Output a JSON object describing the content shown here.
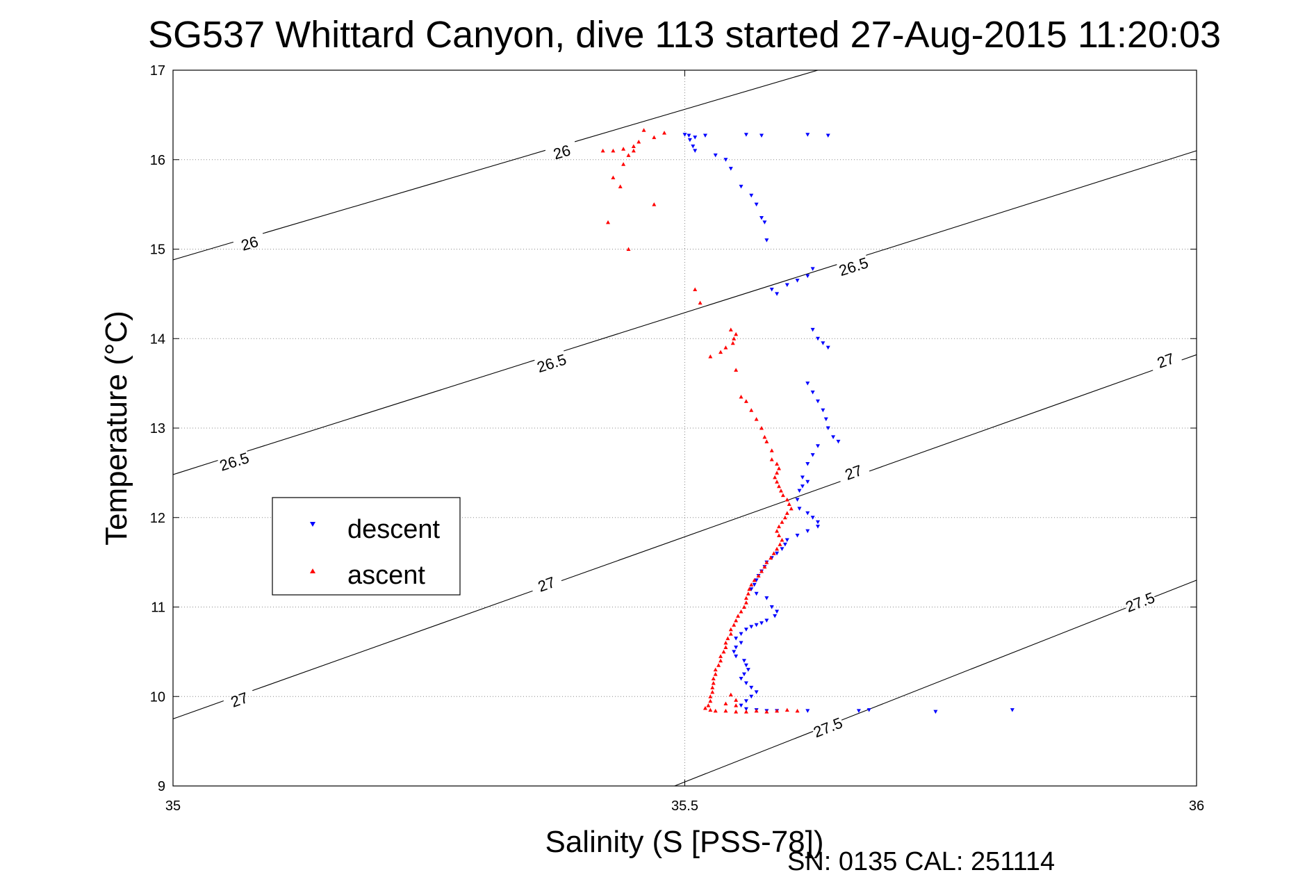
{
  "chart_data": {
    "type": "scatter",
    "title": "SG537 Whittard Canyon, dive 113 started 27-Aug-2015 11:20:03",
    "xlabel": "Salinity (S [PSS-78])",
    "ylabel": "Temperature (°C)",
    "xlim": [
      35,
      36
    ],
    "ylim": [
      9,
      17
    ],
    "xticks": [
      "35",
      "35.5",
      "36"
    ],
    "yticks": [
      "9",
      "10",
      "11",
      "12",
      "13",
      "14",
      "15",
      "16",
      "17"
    ],
    "grid": true,
    "legend_position": "middle-left",
    "isopycnals": [
      {
        "label": "26",
        "line": [
          [
            35.0,
            14.88
          ],
          [
            35.63,
            17.0
          ]
        ],
        "label_points": [
          [
            35.075,
            15.06
          ],
          [
            35.38,
            16.08
          ]
        ]
      },
      {
        "label": "26.5",
        "line": [
          [
            35.0,
            12.48
          ],
          [
            36.0,
            16.1
          ]
        ],
        "label_points": [
          [
            35.06,
            12.62
          ],
          [
            35.37,
            13.72
          ],
          [
            35.665,
            14.8
          ]
        ]
      },
      {
        "label": "27",
        "line": [
          [
            35.0,
            9.75
          ],
          [
            36.0,
            13.82
          ]
        ],
        "label_points": [
          [
            35.065,
            9.96
          ],
          [
            35.365,
            11.25
          ],
          [
            35.665,
            12.5
          ],
          [
            35.97,
            13.75
          ]
        ]
      },
      {
        "label": "27.5",
        "line": [
          [
            35.49,
            9.0
          ],
          [
            36.0,
            11.3
          ]
        ],
        "label_points": [
          [
            35.64,
            9.65
          ],
          [
            35.945,
            11.05
          ]
        ]
      }
    ],
    "series": [
      {
        "name": "descent",
        "color": "#0000ff",
        "marker": "triangle-down",
        "points": [
          [
            35.5,
            16.28
          ],
          [
            35.504,
            16.27
          ],
          [
            35.51,
            16.25
          ],
          [
            35.52,
            16.27
          ],
          [
            35.56,
            16.28
          ],
          [
            35.575,
            16.27
          ],
          [
            35.62,
            16.28
          ],
          [
            35.64,
            16.27
          ],
          [
            35.505,
            16.22
          ],
          [
            35.508,
            16.15
          ],
          [
            35.51,
            16.1
          ],
          [
            35.53,
            16.05
          ],
          [
            35.54,
            16.0
          ],
          [
            35.545,
            15.9
          ],
          [
            35.555,
            15.7
          ],
          [
            35.565,
            15.6
          ],
          [
            35.57,
            15.5
          ],
          [
            35.575,
            15.35
          ],
          [
            35.578,
            15.3
          ],
          [
            35.58,
            15.1
          ],
          [
            35.585,
            14.55
          ],
          [
            35.59,
            14.5
          ],
          [
            35.6,
            14.6
          ],
          [
            35.61,
            14.65
          ],
          [
            35.62,
            14.7
          ],
          [
            35.625,
            14.78
          ],
          [
            35.625,
            14.1
          ],
          [
            35.63,
            14.0
          ],
          [
            35.635,
            13.95
          ],
          [
            35.64,
            13.9
          ],
          [
            35.62,
            13.5
          ],
          [
            35.625,
            13.4
          ],
          [
            35.63,
            13.3
          ],
          [
            35.635,
            13.2
          ],
          [
            35.638,
            13.1
          ],
          [
            35.64,
            13.0
          ],
          [
            35.645,
            12.9
          ],
          [
            35.65,
            12.85
          ],
          [
            35.63,
            12.8
          ],
          [
            35.625,
            12.7
          ],
          [
            35.62,
            12.6
          ],
          [
            35.615,
            12.45
          ],
          [
            35.62,
            12.4
          ],
          [
            35.615,
            12.35
          ],
          [
            35.612,
            12.3
          ],
          [
            35.61,
            12.2
          ],
          [
            35.612,
            12.1
          ],
          [
            35.62,
            12.05
          ],
          [
            35.625,
            12.0
          ],
          [
            35.63,
            11.95
          ],
          [
            35.63,
            11.9
          ],
          [
            35.62,
            11.85
          ],
          [
            35.61,
            11.8
          ],
          [
            35.6,
            11.75
          ],
          [
            35.598,
            11.7
          ],
          [
            35.595,
            11.65
          ],
          [
            35.59,
            11.6
          ],
          [
            35.585,
            11.55
          ],
          [
            35.58,
            11.5
          ],
          [
            35.578,
            11.45
          ],
          [
            35.575,
            11.4
          ],
          [
            35.572,
            11.35
          ],
          [
            35.57,
            11.3
          ],
          [
            35.568,
            11.25
          ],
          [
            35.565,
            11.2
          ],
          [
            35.57,
            11.15
          ],
          [
            35.58,
            11.1
          ],
          [
            35.585,
            11.0
          ],
          [
            35.59,
            10.95
          ],
          [
            35.588,
            10.9
          ],
          [
            35.58,
            10.85
          ],
          [
            35.575,
            10.82
          ],
          [
            35.57,
            10.8
          ],
          [
            35.565,
            10.78
          ],
          [
            35.56,
            10.75
          ],
          [
            35.555,
            10.7
          ],
          [
            35.55,
            10.65
          ],
          [
            35.555,
            10.6
          ],
          [
            35.55,
            10.55
          ],
          [
            35.548,
            10.5
          ],
          [
            35.55,
            10.45
          ],
          [
            35.558,
            10.4
          ],
          [
            35.56,
            10.35
          ],
          [
            35.562,
            10.3
          ],
          [
            35.558,
            10.25
          ],
          [
            35.555,
            10.2
          ],
          [
            35.56,
            10.15
          ],
          [
            35.565,
            10.1
          ],
          [
            35.57,
            10.05
          ],
          [
            35.565,
            10.0
          ],
          [
            35.56,
            9.95
          ],
          [
            35.555,
            9.9
          ],
          [
            35.56,
            9.86
          ],
          [
            35.57,
            9.85
          ],
          [
            35.58,
            9.84
          ],
          [
            35.59,
            9.84
          ],
          [
            35.62,
            9.84
          ],
          [
            35.67,
            9.84
          ],
          [
            35.68,
            9.85
          ],
          [
            35.745,
            9.83
          ],
          [
            35.82,
            9.85
          ]
        ]
      },
      {
        "name": "ascent",
        "color": "#ff0000",
        "marker": "triangle-up",
        "points": [
          [
            35.46,
            16.33
          ],
          [
            35.48,
            16.3
          ],
          [
            35.47,
            16.25
          ],
          [
            35.455,
            16.2
          ],
          [
            35.45,
            16.15
          ],
          [
            35.44,
            16.12
          ],
          [
            35.43,
            16.1
          ],
          [
            35.445,
            16.05
          ],
          [
            35.44,
            15.95
          ],
          [
            35.45,
            16.1
          ],
          [
            35.42,
            16.1
          ],
          [
            35.43,
            15.8
          ],
          [
            35.437,
            15.7
          ],
          [
            35.47,
            15.5
          ],
          [
            35.425,
            15.3
          ],
          [
            35.445,
            15.0
          ],
          [
            35.51,
            14.55
          ],
          [
            35.515,
            14.4
          ],
          [
            35.545,
            14.1
          ],
          [
            35.55,
            14.05
          ],
          [
            35.548,
            14.0
          ],
          [
            35.547,
            13.95
          ],
          [
            35.54,
            13.9
          ],
          [
            35.535,
            13.85
          ],
          [
            35.525,
            13.8
          ],
          [
            35.55,
            13.65
          ],
          [
            35.555,
            13.35
          ],
          [
            35.56,
            13.3
          ],
          [
            35.565,
            13.2
          ],
          [
            35.57,
            13.1
          ],
          [
            35.575,
            13.0
          ],
          [
            35.578,
            12.9
          ],
          [
            35.58,
            12.85
          ],
          [
            35.585,
            12.75
          ],
          [
            35.585,
            12.65
          ],
          [
            35.59,
            12.6
          ],
          [
            35.592,
            12.55
          ],
          [
            35.59,
            12.5
          ],
          [
            35.588,
            12.45
          ],
          [
            35.59,
            12.4
          ],
          [
            35.592,
            12.35
          ],
          [
            35.594,
            12.3
          ],
          [
            35.596,
            12.25
          ],
          [
            35.6,
            12.2
          ],
          [
            35.602,
            12.15
          ],
          [
            35.604,
            12.1
          ],
          [
            35.6,
            12.05
          ],
          [
            35.598,
            12.0
          ],
          [
            35.595,
            11.95
          ],
          [
            35.592,
            11.9
          ],
          [
            35.59,
            11.85
          ],
          [
            35.592,
            11.8
          ],
          [
            35.595,
            11.75
          ],
          [
            35.593,
            11.7
          ],
          [
            35.59,
            11.65
          ],
          [
            35.587,
            11.6
          ],
          [
            35.584,
            11.55
          ],
          [
            35.58,
            11.5
          ],
          [
            35.578,
            11.45
          ],
          [
            35.575,
            11.4
          ],
          [
            35.572,
            11.35
          ],
          [
            35.568,
            11.3
          ],
          [
            35.565,
            11.25
          ],
          [
            35.563,
            11.2
          ],
          [
            35.562,
            11.15
          ],
          [
            35.56,
            11.1
          ],
          [
            35.56,
            11.05
          ],
          [
            35.558,
            11.0
          ],
          [
            35.555,
            10.95
          ],
          [
            35.552,
            10.9
          ],
          [
            35.55,
            10.85
          ],
          [
            35.548,
            10.8
          ],
          [
            35.545,
            10.75
          ],
          [
            35.545,
            10.7
          ],
          [
            35.542,
            10.65
          ],
          [
            35.54,
            10.6
          ],
          [
            35.54,
            10.55
          ],
          [
            35.538,
            10.5
          ],
          [
            35.535,
            10.45
          ],
          [
            35.535,
            10.4
          ],
          [
            35.533,
            10.35
          ],
          [
            35.53,
            10.3
          ],
          [
            35.53,
            10.25
          ],
          [
            35.528,
            10.2
          ],
          [
            35.528,
            10.15
          ],
          [
            35.527,
            10.1
          ],
          [
            35.527,
            10.05
          ],
          [
            35.525,
            10.0
          ],
          [
            35.525,
            9.95
          ],
          [
            35.523,
            9.9
          ],
          [
            35.52,
            9.87
          ],
          [
            35.525,
            9.85
          ],
          [
            35.53,
            9.84
          ],
          [
            35.54,
            9.84
          ],
          [
            35.55,
            9.83
          ],
          [
            35.56,
            9.83
          ],
          [
            35.57,
            9.84
          ],
          [
            35.58,
            9.83
          ],
          [
            35.59,
            9.84
          ],
          [
            35.6,
            9.85
          ],
          [
            35.61,
            9.84
          ],
          [
            35.54,
            9.92
          ],
          [
            35.55,
            9.96
          ],
          [
            35.545,
            10.02
          ],
          [
            35.55,
            9.9
          ]
        ]
      }
    ]
  },
  "footer_text": "SN: 0135  CAL: 251114"
}
